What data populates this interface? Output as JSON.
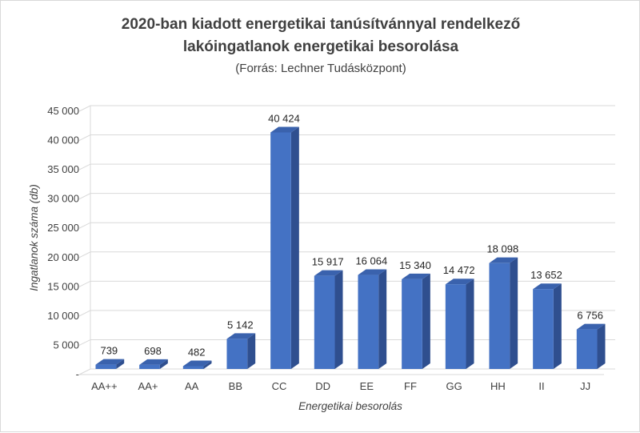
{
  "chart_data": {
    "type": "bar",
    "title_lines": [
      "2020-ban kiadott energetikai tanúsítvánnyal rendelkező",
      "lakóingatlanok energetikai besorolása"
    ],
    "subtitle": "(Forrás: Lechner Tudásközpont)",
    "xlabel": "Energetikai besorolás",
    "ylabel": "Ingatlanok száma (db)",
    "categories": [
      "AA++",
      "AA+",
      "AA",
      "BB",
      "CC",
      "DD",
      "EE",
      "FF",
      "GG",
      "HH",
      "II",
      "JJ"
    ],
    "values": [
      739,
      698,
      482,
      5142,
      40424,
      15917,
      16064,
      15340,
      14472,
      18098,
      13652,
      6756
    ],
    "value_labels": [
      "739",
      "698",
      "482",
      "5 142",
      "40 424",
      "15 917",
      "16 064",
      "15 340",
      "14 472",
      "18 098",
      "13 652",
      "6 756"
    ],
    "ylim": [
      0,
      45000
    ],
    "yticks": [
      0,
      5000,
      10000,
      15000,
      20000,
      25000,
      30000,
      35000,
      40000,
      45000
    ],
    "ytick_labels": [
      "-",
      "5 000",
      "10 000",
      "15 000",
      "20 000",
      "25 000",
      "30 000",
      "35 000",
      "40 000",
      "45 000"
    ],
    "grid": true,
    "legend": "none",
    "bar_colors": {
      "front": "#4472c4",
      "side": "#2f4f8f",
      "top": "#3a62ad"
    },
    "grid_color": "#d9d9d9"
  }
}
